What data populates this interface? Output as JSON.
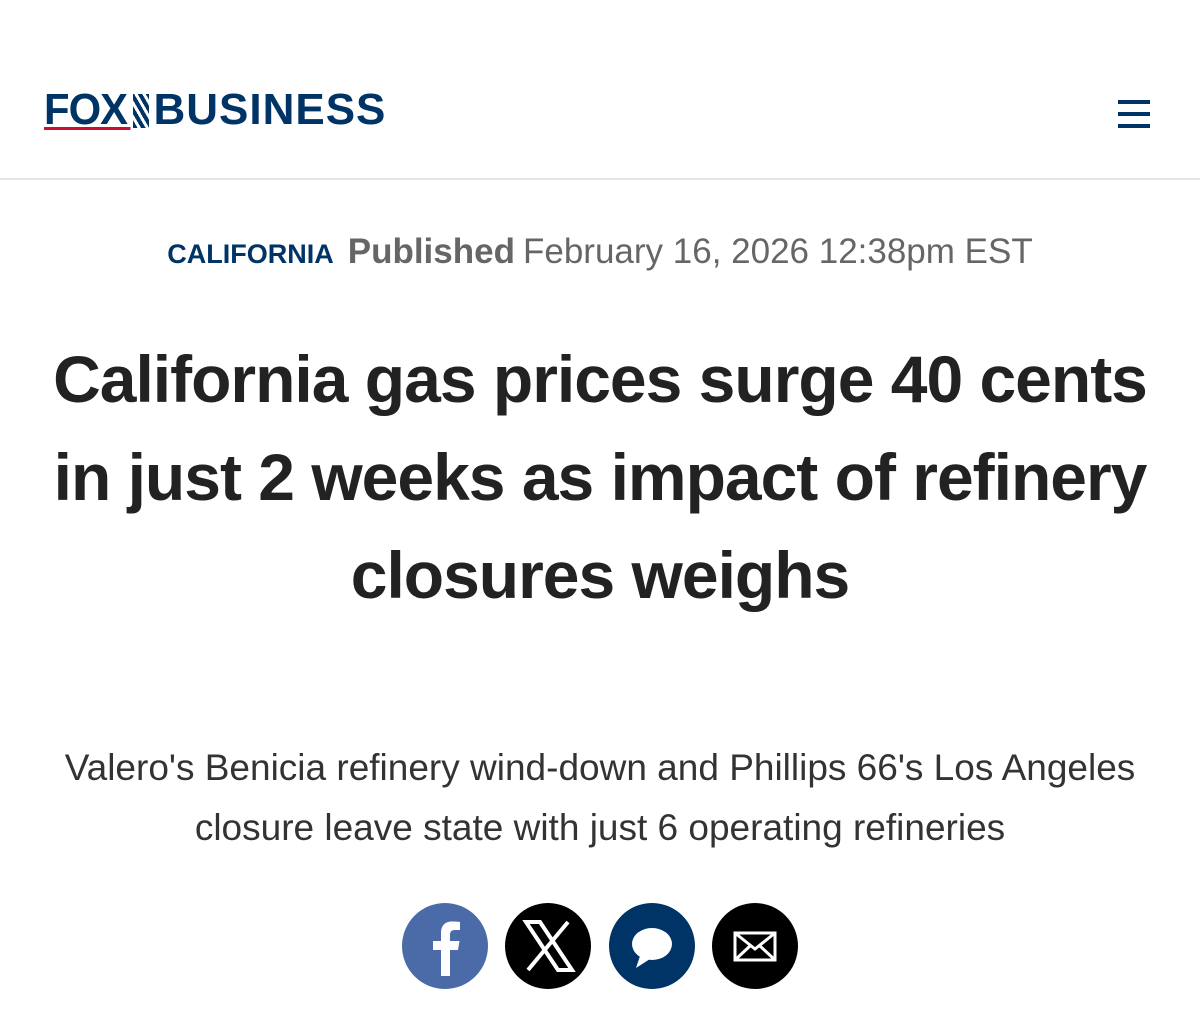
{
  "header": {
    "logo": {
      "fox": "FOX",
      "business": "BUSINESS"
    }
  },
  "meta": {
    "category": "CALIFORNIA",
    "published_label": "Published",
    "date": "February 16, 2026 12:38pm EST"
  },
  "headline": "California gas prices surge 40 cents in just 2 weeks as impact of refinery closures weighs",
  "subheadline": "Valero's Benicia refinery wind-down and Phillips 66's Los Angeles closure leave state with just 6 operating refineries"
}
